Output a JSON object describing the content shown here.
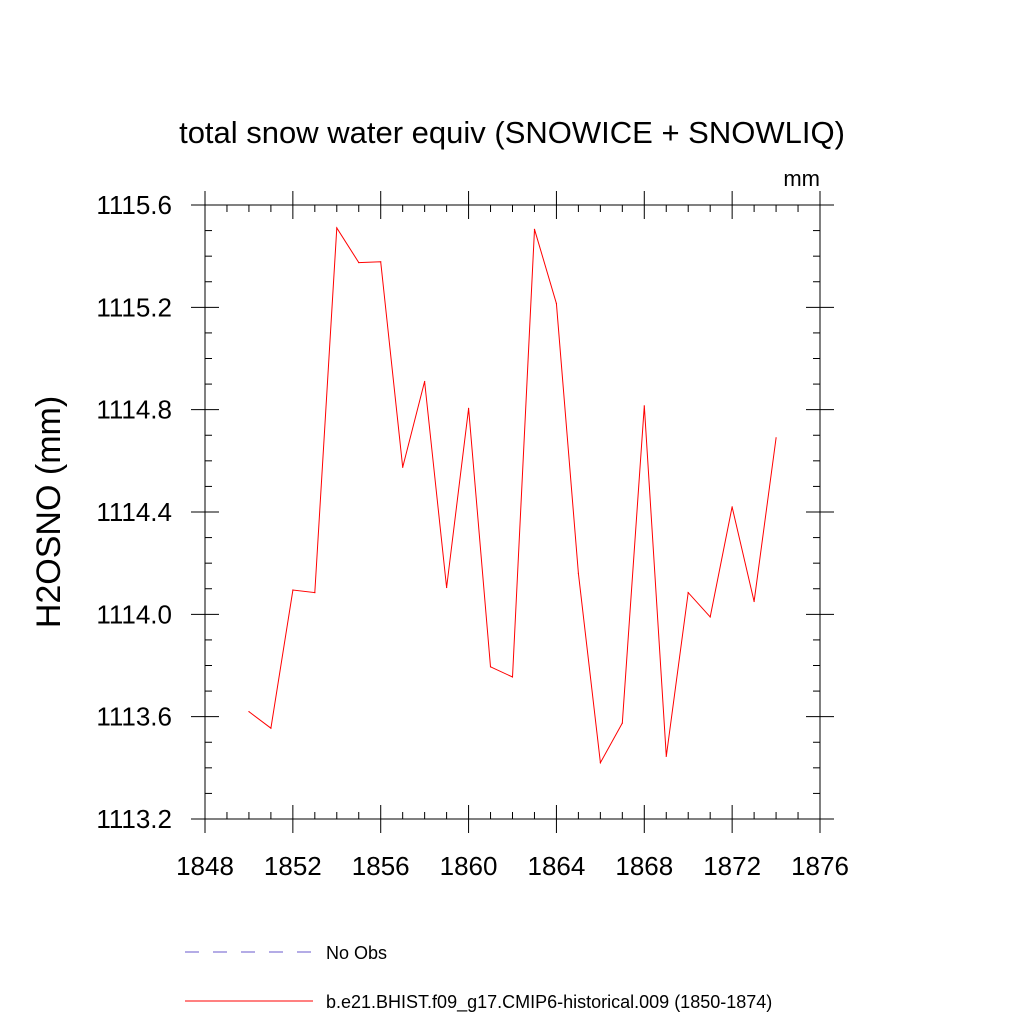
{
  "chart_data": {
    "type": "line",
    "title": "total snow water equiv (SNOWICE + SNOWLIQ)",
    "units_label": "mm",
    "ylabel": "H2OSNO  (mm)",
    "xlabel": "",
    "xlim": [
      1848,
      1876
    ],
    "ylim": [
      1113.2,
      1115.6
    ],
    "x_ticks": [
      1848,
      1852,
      1856,
      1860,
      1864,
      1868,
      1872,
      1876
    ],
    "y_ticks": [
      1113.2,
      1113.6,
      1114.0,
      1114.4,
      1114.8,
      1115.2,
      1115.6
    ],
    "x_tick_labels": [
      "1848",
      "1852",
      "1856",
      "1860",
      "1864",
      "1868",
      "1872",
      "1876"
    ],
    "y_tick_labels": [
      "1113.2",
      "1113.6",
      "1114.0",
      "1114.4",
      "1114.8",
      "1115.2",
      "1115.6"
    ],
    "grid": false,
    "legend_position": "bottom",
    "series": [
      {
        "name": "b.e21.BHIST.f09_g17.CMIP6-historical.009 (1850-1874)",
        "color": "#ff0000",
        "style": "solid",
        "x": [
          1850,
          1851,
          1852,
          1853,
          1854,
          1855,
          1856,
          1857,
          1858,
          1859,
          1860,
          1861,
          1862,
          1863,
          1864,
          1865,
          1866,
          1867,
          1868,
          1869,
          1870,
          1871,
          1872,
          1873,
          1874
        ],
        "values": [
          1113.62,
          1113.555,
          1114.095,
          1114.085,
          1115.51,
          1115.375,
          1115.378,
          1114.575,
          1114.91,
          1114.105,
          1114.805,
          1113.795,
          1113.755,
          1115.505,
          1115.215,
          1114.16,
          1113.42,
          1113.575,
          1114.815,
          1113.445,
          1114.085,
          1113.99,
          1114.42,
          1114.05,
          1114.69
        ]
      }
    ],
    "legend": [
      {
        "label": "No Obs",
        "color": "#6a5acd",
        "style": "dashed"
      },
      {
        "label": "b.e21.BHIST.f09_g17.CMIP6-historical.009 (1850-1874)",
        "color": "#ff0000",
        "style": "solid"
      }
    ]
  }
}
